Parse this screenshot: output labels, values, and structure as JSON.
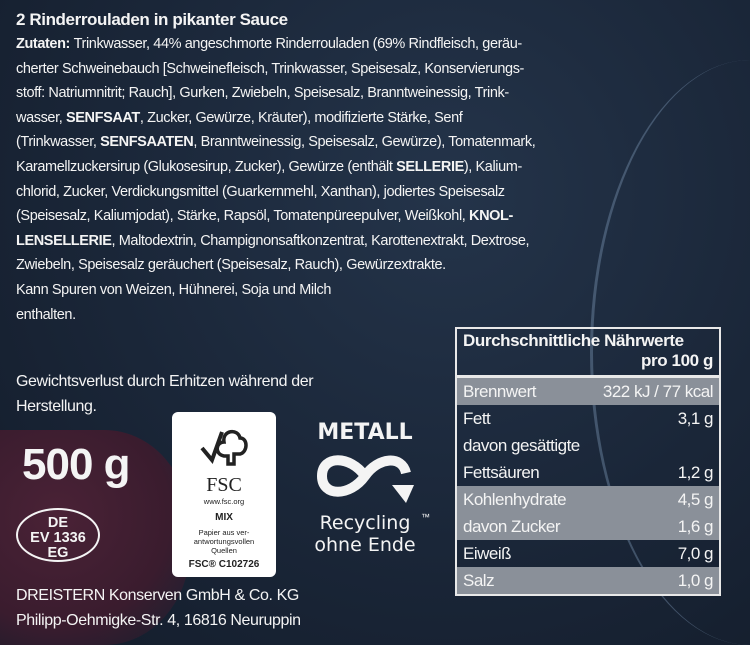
{
  "product_title": "2 Rinderrouladen in pikanter Sauce",
  "ingredients_lines": [
    [
      {
        "t": "Zutaten: ",
        "b": true
      },
      {
        "t": "Trinkwasser, 44% angeschmorte Rinderrouladen (69% Rindfleisch, geräu-"
      }
    ],
    [
      {
        "t": "cherter Schweinebauch [Schweinefleisch, Trinkwasser, Speisesalz, Konservierungs-"
      }
    ],
    [
      {
        "t": "stoff: Natriumnitrit; Rauch], Gurken, Zwiebeln, Speisesalz, Branntweinessig, Trink-"
      }
    ],
    [
      {
        "t": "wasser, "
      },
      {
        "t": "SENFSAAT",
        "b": true
      },
      {
        "t": ", Zucker, Gewürze, Kräuter), modifizierte Stärke, Senf"
      }
    ],
    [
      {
        "t": "(Trinkwasser, "
      },
      {
        "t": "SENFSAATEN",
        "b": true
      },
      {
        "t": ", Branntweinessig, Speisesalz, Gewürze), Tomatenmark,"
      }
    ],
    [
      {
        "t": "Karamellzuckersirup (Glukosesirup, Zucker), Gewürze (enthält "
      },
      {
        "t": "SELLERIE",
        "b": true
      },
      {
        "t": "), Kalium-"
      }
    ],
    [
      {
        "t": "chlorid, Zucker, Verdickungsmittel (Guarkernmehl, Xanthan), jodiertes Speisesalz"
      }
    ],
    [
      {
        "t": "(Speisesalz, Kaliumjodat), Stärke, Rapsöl, Tomatenpüreepulver, Weißkohl, "
      },
      {
        "t": "KNOL-",
        "b": true
      }
    ],
    [
      {
        "t": "LENSELLERIE",
        "b": true
      },
      {
        "t": ", Maltodextrin, Champignonsaftkonzentrat, Karottenextrakt, Dextrose,"
      }
    ],
    [
      {
        "t": "Zwiebeln, Speisesalz geräuchert (Speisesalz, Rauch), Gewürzextrakte."
      }
    ],
    [
      {
        "t": "Kann Spuren von Weizen, Hühnerei, Soja und Milch"
      }
    ],
    [
      {
        "t": "enthalten."
      }
    ]
  ],
  "weight_loss_note": [
    "Gewichtsverlust durch Erhitzen während der",
    "Herstellung."
  ],
  "net_weight": "500 g",
  "health_mark": [
    "DE",
    "EV 1336",
    "EG"
  ],
  "fsc": {
    "brand": "FSC",
    "url": "www.fsc.org",
    "type": "MIX",
    "desc": [
      "Papier aus ver-",
      "antwortungsvollen",
      "Quellen"
    ],
    "code": "FSC® C102726"
  },
  "metal_recycling": {
    "title": "METALL",
    "tm": "™",
    "line1": "Recycling",
    "line2": "ohne Ende"
  },
  "manufacturer": [
    "DREISTERN Konserven GmbH & Co. KG",
    "Philipp-Oehmigke-Str. 4, 16816 Neuruppin"
  ],
  "nutrition": {
    "header": "Durchschnittliche Nährwerte",
    "per": "pro 100 g",
    "rows": [
      {
        "label": "Brennwert",
        "value": "322 kJ / 77 kcal",
        "shade": "gray"
      },
      {
        "label": "Fett",
        "value": "3,1 g",
        "shade": "dark"
      },
      {
        "label": "davon gesättigte",
        "value": "",
        "shade": "dark"
      },
      {
        "label": "Fettsäuren",
        "value": "1,2 g",
        "shade": "dark"
      },
      {
        "label": "Kohlenhydrate",
        "value": "4,5 g",
        "shade": "gray"
      },
      {
        "label": "davon Zucker",
        "value": "1,6 g",
        "shade": "gray"
      },
      {
        "label": "Eiweiß",
        "value": "7,0 g",
        "shade": "dark"
      },
      {
        "label": "Salz",
        "value": "1,0 g",
        "shade": "gray"
      }
    ]
  }
}
